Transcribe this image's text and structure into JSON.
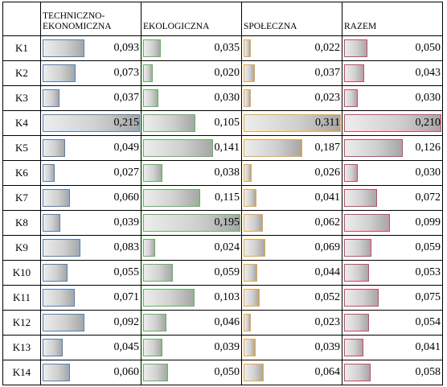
{
  "chart_data": {
    "type": "table",
    "columns": [
      "TECHNICZNO-\nEKONOMICZNA",
      "EKOLOGICZNA",
      "SPOŁECZNA",
      "RAZEM"
    ],
    "rows": [
      "K1",
      "K2",
      "K3",
      "K4",
      "K5",
      "K6",
      "K7",
      "K8",
      "K9",
      "K10",
      "K11",
      "K12",
      "K13",
      "K14"
    ],
    "series": [
      {
        "values": [
          "0,093",
          "0,073",
          "0,037",
          "0,215",
          "0,049",
          "0,027",
          "0,060",
          "0,039",
          "0,083",
          "0,055",
          "0,071",
          "0,092",
          "0,045",
          "0,060"
        ],
        "color": "#4f81bd"
      },
      {
        "values": [
          "0,035",
          "0,020",
          "0,030",
          "0,105",
          "0,141",
          "0,038",
          "0,115",
          "0,195",
          "0,024",
          "0,059",
          "0,103",
          "0,046",
          "0,039",
          "0,050"
        ],
        "color": "#5cb85c"
      },
      {
        "values": [
          "0,022",
          "0,037",
          "0,023",
          "0,311",
          "0,187",
          "0,026",
          "0,041",
          "0,062",
          "0,069",
          "0,044",
          "0,052",
          "0,023",
          "0,039",
          "0,064"
        ],
        "color": "#f0a830"
      },
      {
        "values": [
          "0,050",
          "0,043",
          "0,030",
          "0,210",
          "0,126",
          "0,030",
          "0,072",
          "0,099",
          "0,059",
          "0,053",
          "0,075",
          "0,054",
          "0,041",
          "0,058"
        ],
        "color": "#d9435e"
      }
    ]
  }
}
